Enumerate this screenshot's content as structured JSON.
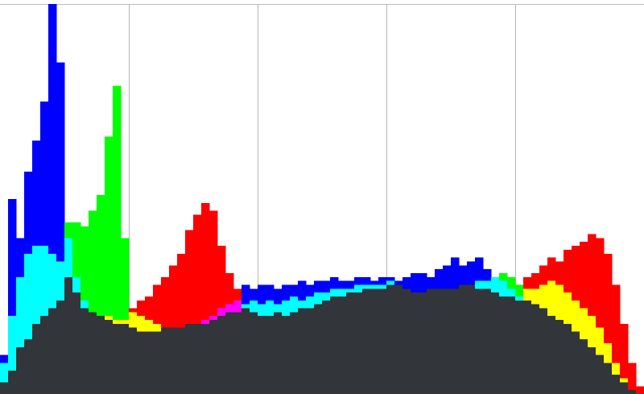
{
  "chart_data": {
    "type": "histogram",
    "bins": [
      0,
      1,
      2,
      3,
      4,
      5,
      6,
      7,
      8,
      9,
      10,
      11,
      12,
      13,
      14,
      15,
      16,
      17,
      18,
      19,
      20,
      21,
      22,
      23,
      24,
      25,
      26,
      27,
      28,
      29,
      30,
      31,
      32,
      33,
      34,
      35,
      36,
      37,
      38,
      39,
      40,
      41,
      42,
      43,
      44,
      45,
      46,
      47,
      48,
      49,
      50,
      51,
      52,
      53,
      54,
      55,
      56,
      57,
      58,
      59,
      60,
      61,
      62,
      63,
      64,
      65,
      66,
      67,
      68,
      69,
      70,
      71,
      72,
      73,
      74,
      75,
      76,
      77,
      78,
      79,
      80
    ],
    "series": [
      {
        "name": "Red",
        "color": "#ff0000",
        "values": [
          3,
          6,
          12,
          14,
          18,
          20,
          22,
          24,
          30,
          26,
          22,
          21,
          20,
          20,
          19,
          19,
          22,
          24,
          25,
          28,
          30,
          33,
          36,
          42,
          46,
          49,
          47,
          38,
          31,
          27,
          22,
          21,
          20,
          20,
          21,
          20,
          21,
          22,
          22,
          23,
          24,
          25,
          25,
          26,
          26,
          27,
          27,
          27,
          28,
          28,
          27,
          26,
          26,
          27,
          27,
          27,
          27,
          28,
          28,
          27,
          27,
          26,
          25,
          25,
          24,
          30,
          31,
          33,
          35,
          34,
          37,
          38,
          39,
          41,
          40,
          36,
          28,
          18,
          8,
          2
        ]
      },
      {
        "name": "Green",
        "color": "#00ff00",
        "values": [
          8,
          20,
          30,
          36,
          38,
          38,
          36,
          34,
          44,
          44,
          43,
          47,
          51,
          66,
          79,
          40,
          21,
          20,
          19,
          18,
          17,
          17,
          17,
          18,
          18,
          18,
          19,
          20,
          21,
          21,
          23,
          24,
          23,
          24,
          23,
          24,
          25,
          24,
          25,
          26,
          26,
          27,
          27,
          27,
          28,
          28,
          28,
          28,
          29,
          28,
          27,
          26,
          26,
          27,
          27,
          27,
          27,
          28,
          28,
          29,
          29,
          30,
          31,
          30,
          28,
          27,
          27,
          28,
          29,
          28,
          26,
          24,
          22,
          20,
          17,
          13,
          8,
          4,
          1,
          0
        ]
      },
      {
        "name": "Blue",
        "color": "#0000ff",
        "values": [
          10,
          50,
          40,
          57,
          65,
          75,
          100,
          85,
          40,
          30,
          24,
          21,
          20,
          19,
          18,
          18,
          17,
          16,
          16,
          16,
          17,
          17,
          17,
          18,
          18,
          19,
          20,
          22,
          23,
          24,
          28,
          27,
          28,
          28,
          27,
          28,
          28,
          29,
          28,
          29,
          29,
          30,
          29,
          29,
          30,
          30,
          29,
          30,
          30,
          29,
          30,
          31,
          31,
          30,
          32,
          33,
          35,
          33,
          34,
          35,
          32,
          30,
          29,
          27,
          25,
          24,
          23,
          22,
          20,
          19,
          18,
          16,
          14,
          12,
          10,
          8,
          5,
          3,
          1,
          0
        ]
      }
    ],
    "overlap_color": "#323539",
    "xlim": [
      0,
      80
    ],
    "xticks": [
      16,
      32,
      48,
      64
    ],
    "ylim": [
      0,
      100
    ],
    "grid": true
  }
}
